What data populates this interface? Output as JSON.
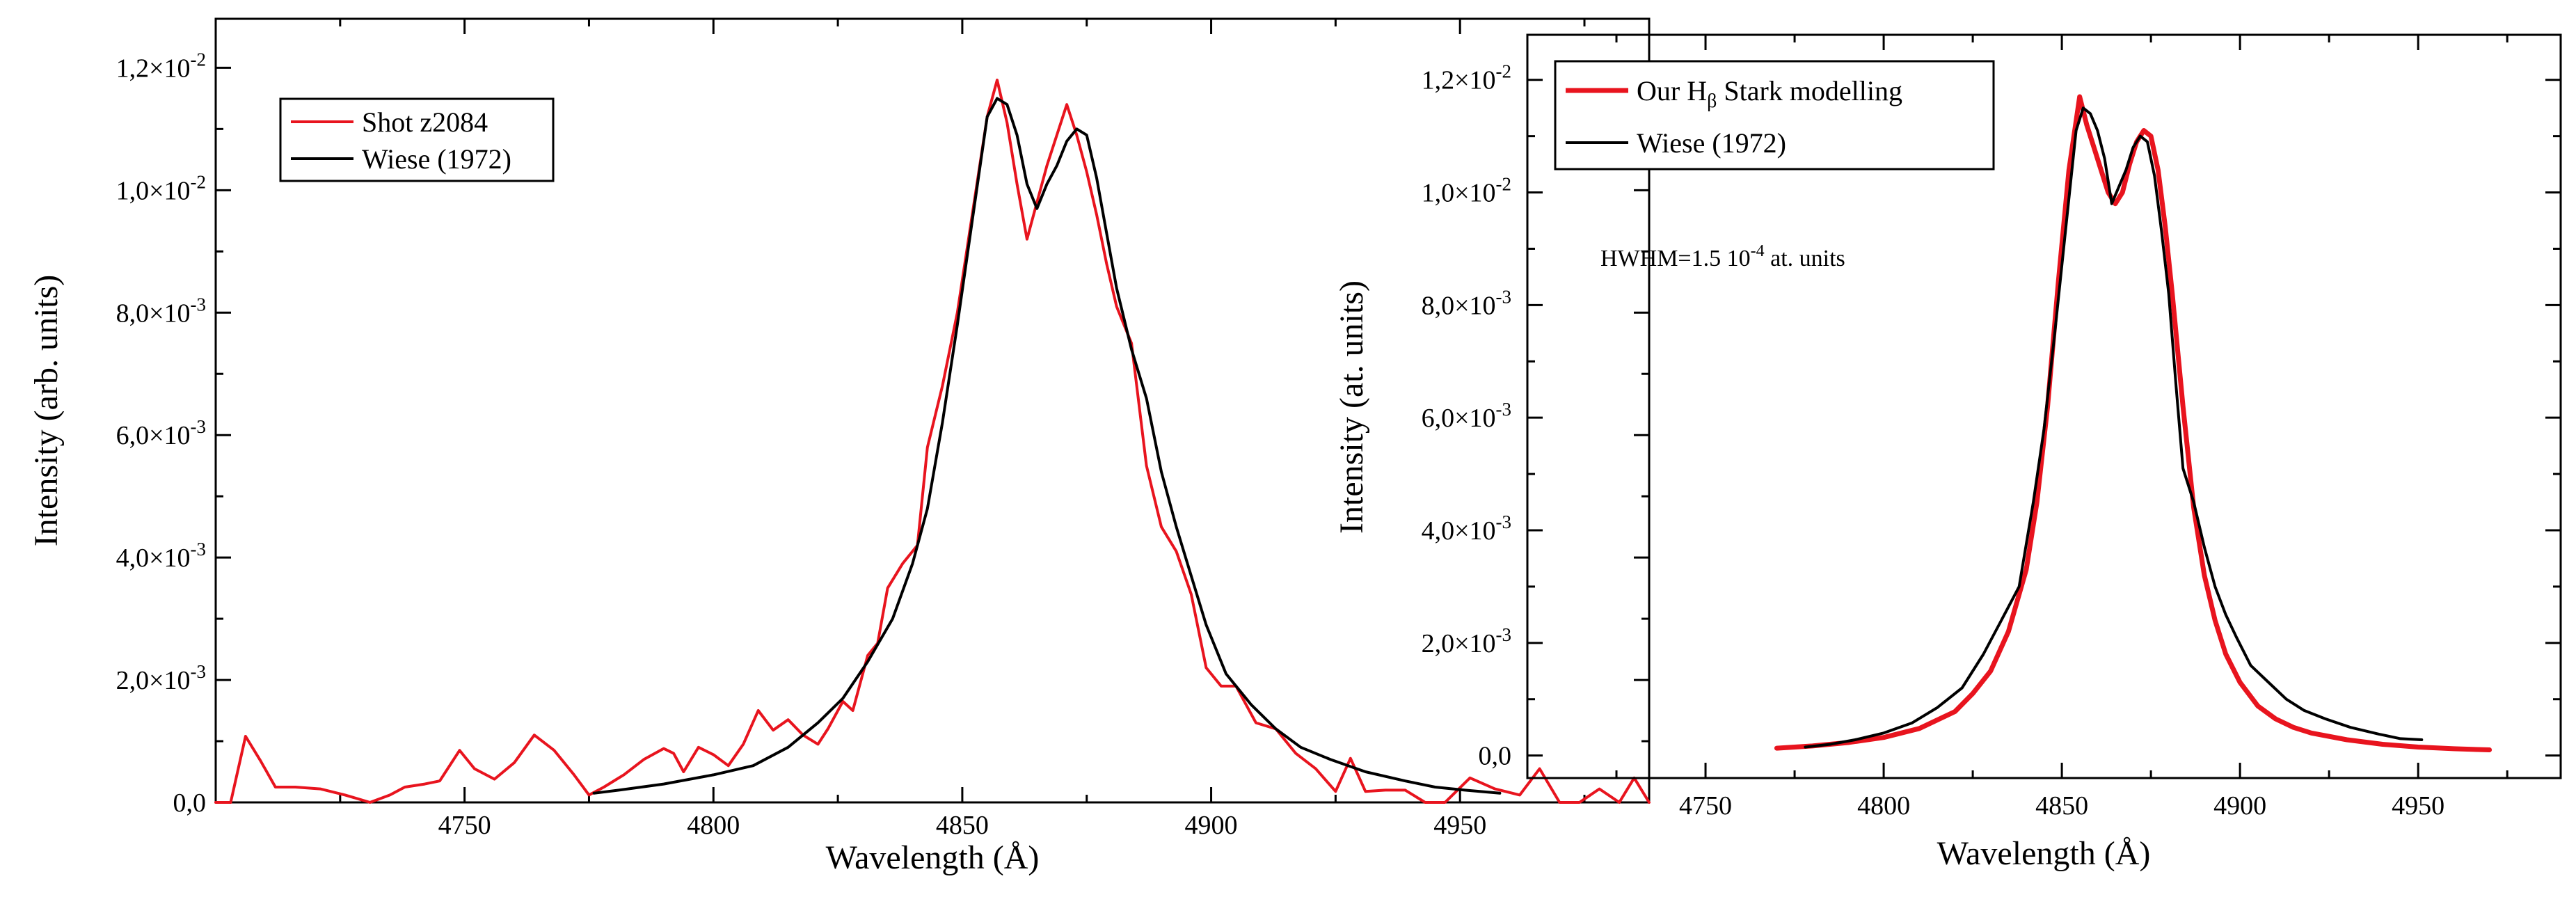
{
  "chart_data": [
    {
      "type": "line",
      "xlabel": "Wavelength (Å)",
      "ylabel": "Intensity (arb. units)",
      "xlim": [
        4700,
        4988
      ],
      "ylim": [
        0,
        0.0128
      ],
      "x_ticks": [
        {
          "value": 4750,
          "label": "4750"
        },
        {
          "value": 4800,
          "label": "4800"
        },
        {
          "value": 4850,
          "label": "4850"
        },
        {
          "value": 4900,
          "label": "4900"
        },
        {
          "value": 4950,
          "label": "4950"
        }
      ],
      "x_minor_ticks": [
        4725,
        4775,
        4825,
        4875,
        4925,
        4975
      ],
      "y_ticks": [
        {
          "value": 0,
          "mantissa": "0,0",
          "exponent": ""
        },
        {
          "value": 0.002,
          "mantissa": "2,0×10",
          "exponent": "-3"
        },
        {
          "value": 0.004,
          "mantissa": "4,0×10",
          "exponent": "-3"
        },
        {
          "value": 0.006,
          "mantissa": "6,0×10",
          "exponent": "-3"
        },
        {
          "value": 0.008,
          "mantissa": "8,0×10",
          "exponent": "-3"
        },
        {
          "value": 0.01,
          "mantissa": "1,0×10",
          "exponent": "-2"
        },
        {
          "value": 0.012,
          "mantissa": "1,2×10",
          "exponent": "-2"
        }
      ],
      "y_minor_ticks": [
        0.001,
        0.003,
        0.005,
        0.007,
        0.009,
        0.011
      ],
      "legend_position": "top-left",
      "series": [
        {
          "name": "Shot z2084",
          "color": "#e8141e",
          "x": [
            4700,
            4703,
            4706,
            4709,
            4712,
            4716,
            4721,
            4726,
            4731,
            4735,
            4738,
            4742,
            4745,
            4749,
            4752,
            4756,
            4760,
            4764,
            4768,
            4772,
            4775,
            4778,
            4782,
            4786,
            4790,
            4792,
            4794,
            4797,
            4800,
            4803,
            4806,
            4809,
            4812,
            4815,
            4818,
            4821,
            4823,
            4826,
            4828,
            4831,
            4833,
            4835,
            4838,
            4841,
            4843,
            4846,
            4849,
            4852,
            4855,
            4857,
            4859,
            4861,
            4863,
            4865,
            4867,
            4869,
            4871,
            4873,
            4875,
            4877,
            4879,
            4881,
            4884,
            4887,
            4890,
            4893,
            4896,
            4899,
            4902,
            4905,
            4909,
            4913,
            4917,
            4921,
            4925,
            4928,
            4931,
            4935,
            4939,
            4943,
            4947,
            4952,
            4957,
            4962,
            4966,
            4970,
            4974,
            4978,
            4982,
            4985,
            4988
          ],
          "y": [
            0.0,
            0.0,
            0.00108,
            0.00068,
            0.00025,
            0.00025,
            0.00022,
            0.00012,
            0.0,
            0.00012,
            0.00025,
            0.0003,
            0.00035,
            0.00085,
            0.00055,
            0.00038,
            0.00065,
            0.0011,
            0.00085,
            0.00045,
            0.00012,
            0.00025,
            0.00045,
            0.0007,
            0.00088,
            0.0008,
            0.0005,
            0.0009,
            0.00078,
            0.0006,
            0.00095,
            0.0015,
            0.00118,
            0.00135,
            0.0011,
            0.00095,
            0.0012,
            0.00165,
            0.0015,
            0.0024,
            0.0026,
            0.0035,
            0.0039,
            0.0042,
            0.0058,
            0.0068,
            0.008,
            0.0096,
            0.0112,
            0.0118,
            0.0111,
            0.0101,
            0.0092,
            0.0098,
            0.0104,
            0.0109,
            0.0114,
            0.0109,
            0.0103,
            0.0096,
            0.0088,
            0.0081,
            0.0075,
            0.0055,
            0.0045,
            0.0041,
            0.0034,
            0.0022,
            0.0019,
            0.0019,
            0.0013,
            0.0012,
            0.0008,
            0.00055,
            0.00018,
            0.00072,
            0.00018,
            0.0002,
            0.0002,
            0.0,
            0.0,
            0.0004,
            0.00022,
            0.00012,
            0.00055,
            0.0,
            0.0,
            0.00022,
            0.0,
            0.0004,
            0.0
          ]
        },
        {
          "name": "Wiese (1972)",
          "color": "#000000",
          "x": [
            4776,
            4781,
            4790,
            4800,
            4808,
            4815,
            4821,
            4826,
            4831,
            4836,
            4840,
            4843,
            4846,
            4849,
            4852,
            4855,
            4857,
            4859,
            4861,
            4863,
            4865,
            4867,
            4869,
            4871,
            4873,
            4875,
            4877,
            4879,
            4881,
            4884,
            4887,
            4890,
            4893,
            4896,
            4899,
            4903,
            4908,
            4913,
            4918,
            4924,
            4931,
            4939,
            4945,
            4951,
            4958
          ],
          "y": [
            0.00015,
            0.0002,
            0.0003,
            0.00045,
            0.0006,
            0.0009,
            0.0013,
            0.0017,
            0.0023,
            0.003,
            0.0039,
            0.0048,
            0.0062,
            0.0078,
            0.0095,
            0.0112,
            0.0115,
            0.0114,
            0.0109,
            0.0101,
            0.0097,
            0.0101,
            0.0104,
            0.0108,
            0.011,
            0.0109,
            0.0102,
            0.0093,
            0.0084,
            0.0074,
            0.0066,
            0.0054,
            0.0045,
            0.0037,
            0.0029,
            0.0021,
            0.0016,
            0.0012,
            0.0009,
            0.0007,
            0.0005,
            0.00035,
            0.00025,
            0.0002,
            0.00015
          ]
        }
      ]
    },
    {
      "type": "line",
      "xlabel": "Wavelength (Å)",
      "ylabel": "Intensity (at. units)",
      "xlim": [
        4700,
        4990
      ],
      "ylim": [
        -0.0004,
        0.0128
      ],
      "x_ticks": [
        {
          "value": 4750,
          "label": "4750"
        },
        {
          "value": 4800,
          "label": "4800"
        },
        {
          "value": 4850,
          "label": "4850"
        },
        {
          "value": 4900,
          "label": "4900"
        },
        {
          "value": 4950,
          "label": "4950"
        }
      ],
      "x_minor_ticks": [
        4725,
        4775,
        4825,
        4875,
        4925,
        4975
      ],
      "y_ticks": [
        {
          "value": 0,
          "mantissa": "0,0",
          "exponent": ""
        },
        {
          "value": 0.002,
          "mantissa": "2,0×10",
          "exponent": "-3"
        },
        {
          "value": 0.004,
          "mantissa": "4,0×10",
          "exponent": "-3"
        },
        {
          "value": 0.006,
          "mantissa": "6,0×10",
          "exponent": "-3"
        },
        {
          "value": 0.008,
          "mantissa": "8,0×10",
          "exponent": "-3"
        },
        {
          "value": 0.01,
          "mantissa": "1,0×10",
          "exponent": "-2"
        },
        {
          "value": 0.012,
          "mantissa": "1,2×10",
          "exponent": "-2"
        }
      ],
      "y_minor_ticks": [
        0.001,
        0.003,
        0.005,
        0.007,
        0.009,
        0.011
      ],
      "legend_position": "top-left",
      "legend_entry_model": {
        "prefix": "Our H",
        "subscript": "β",
        "suffix": " Stark modelling"
      },
      "annotation": {
        "prefix": "HWHM=1.5 10",
        "exponent": "-4",
        "suffix": " at. units"
      },
      "series": [
        {
          "name": "Our Hβ Stark modelling",
          "color": "#e8141e",
          "x": [
            4770,
            4780,
            4790,
            4800,
            4810,
            4820,
            4825,
            4830,
            4835,
            4840,
            4843,
            4846,
            4849,
            4852,
            4855,
            4857,
            4859,
            4861,
            4863,
            4865,
            4867,
            4869,
            4871,
            4873,
            4875,
            4877,
            4879,
            4881,
            4884,
            4887,
            4890,
            4893,
            4896,
            4900,
            4905,
            4910,
            4915,
            4920,
            4930,
            4940,
            4950,
            4960,
            4970
          ],
          "y": [
            0.00013,
            0.00017,
            0.00023,
            0.00032,
            0.00048,
            0.00078,
            0.0011,
            0.0015,
            0.0022,
            0.0033,
            0.0045,
            0.0062,
            0.0084,
            0.0104,
            0.0117,
            0.0112,
            0.0108,
            0.0104,
            0.01,
            0.0098,
            0.01,
            0.0105,
            0.0109,
            0.0111,
            0.011,
            0.0104,
            0.0094,
            0.0082,
            0.0062,
            0.0044,
            0.0032,
            0.0024,
            0.0018,
            0.0013,
            0.00088,
            0.00065,
            0.0005,
            0.0004,
            0.00028,
            0.0002,
            0.00015,
            0.00012,
            0.0001
          ]
        },
        {
          "name": "Wiese (1972)",
          "color": "#000000",
          "x": [
            4778,
            4785,
            4792,
            4800,
            4808,
            4815,
            4822,
            4828,
            4833,
            4838,
            4842,
            4845,
            4848,
            4851,
            4854,
            4856,
            4858,
            4860,
            4862,
            4864,
            4866,
            4868,
            4870,
            4872,
            4874,
            4876,
            4878,
            4880,
            4882,
            4884,
            4887,
            4890,
            4893,
            4896,
            4899,
            4903,
            4908,
            4913,
            4918,
            4924,
            4931,
            4939,
            4945,
            4951
          ],
          "y": [
            0.00015,
            0.0002,
            0.00028,
            0.0004,
            0.00058,
            0.00085,
            0.0012,
            0.0018,
            0.0024,
            0.003,
            0.0045,
            0.0058,
            0.0075,
            0.0093,
            0.0111,
            0.0115,
            0.0114,
            0.0111,
            0.0106,
            0.0098,
            0.0101,
            0.0104,
            0.0108,
            0.011,
            0.0109,
            0.0103,
            0.0093,
            0.0082,
            0.0066,
            0.0051,
            0.0045,
            0.0037,
            0.003,
            0.0025,
            0.0021,
            0.0016,
            0.0013,
            0.001,
            0.0008,
            0.00065,
            0.0005,
            0.00038,
            0.0003,
            0.00028
          ]
        }
      ]
    }
  ]
}
